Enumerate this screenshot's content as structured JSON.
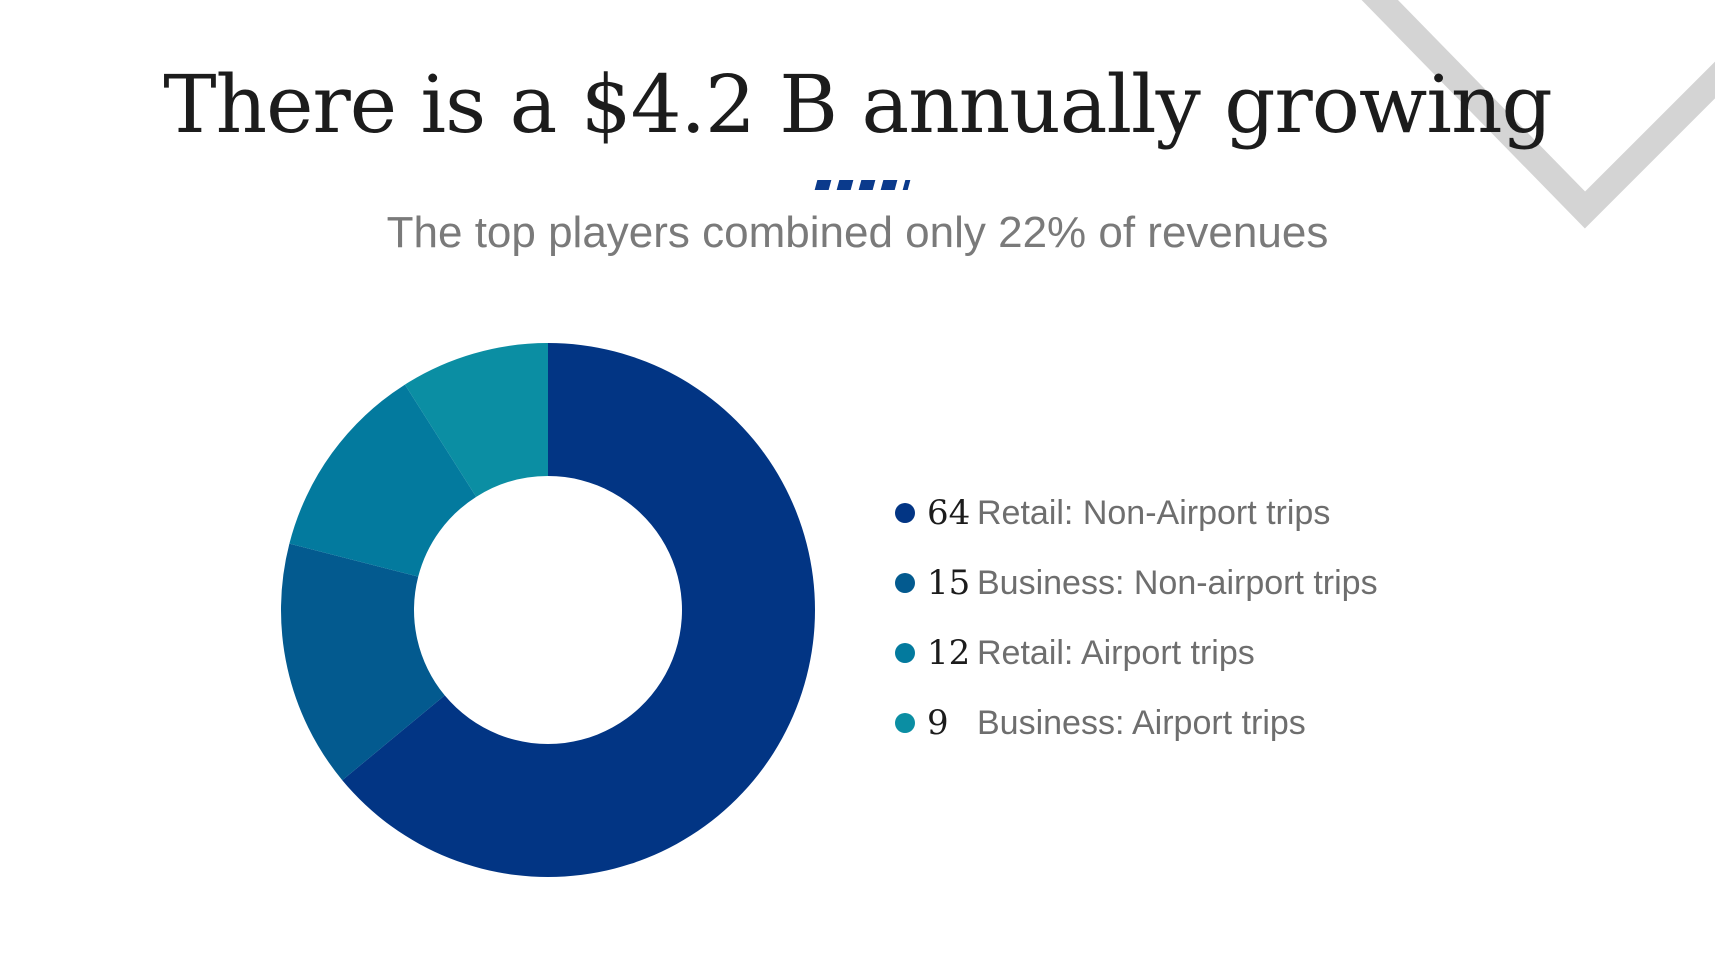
{
  "slide": {
    "title": "There is a $4.2 B annually growing",
    "subtitle": "The top players combined only 22% of revenues"
  },
  "chart_data": {
    "type": "pie",
    "donut": true,
    "values": [
      64,
      15,
      12,
      9
    ],
    "categories": [
      "Retail: Non-Airport trips",
      "Business: Non-airport trips",
      "Retail: Airport trips",
      "Business: Airport trips"
    ],
    "colors": [
      "#023584",
      "#035a8f",
      "#037a9e",
      "#0b8ea3"
    ],
    "legend_position": "right"
  },
  "colors": {
    "accent": "#0a3a8c",
    "title": "#1c1c1c",
    "subtitle": "#7a7a7a",
    "decoration": "#d4d4d4"
  }
}
